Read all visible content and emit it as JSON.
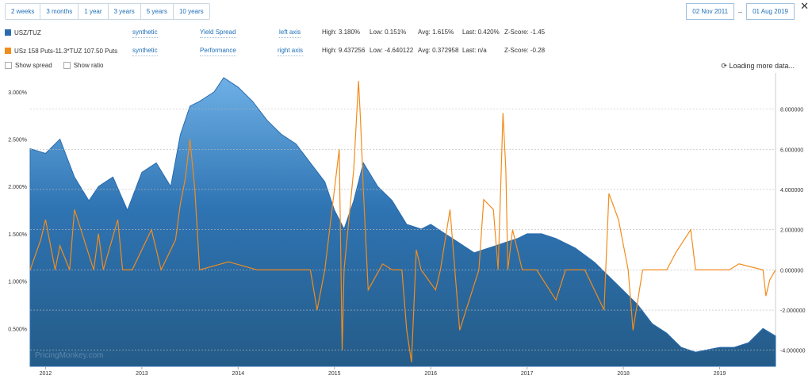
{
  "ranges": [
    "2 weeks",
    "3 months",
    "1 year",
    "3 years",
    "5 years",
    "10 years"
  ],
  "date_from": "02 Nov 2011",
  "date_sep": "–",
  "date_to": "01 Aug 2019",
  "close_label": "✕",
  "series_rows": [
    {
      "color": "#2a6bae",
      "name": "USZ/TUZ",
      "type": "synthetic",
      "mode": "Yield Spread",
      "axis": "left axis",
      "high": "High: 3.180%",
      "low": "Low: 0.151%",
      "avg": "Avg: 1.615%",
      "last": "Last: 0.420%",
      "z": "Z-Score: -1.45"
    },
    {
      "color": "#f28c1c",
      "name": "USz 158 Puts-11.3*TUZ 107.50 Puts",
      "type": "synthetic",
      "mode": "Performance",
      "axis": "right axis",
      "high": "High: 9.437256",
      "low": "Low: -4.640122",
      "avg": "Avg: 0.372958",
      "last": "Last: n/a",
      "z": "Z-Score: -0.28"
    }
  ],
  "show_spread": "Show spread",
  "show_ratio": "Show ratio",
  "loading": "Loading more data...",
  "watermark": "PricingMonkey.com",
  "colors": {
    "spread": "#2a6bae",
    "perf": "#f28c1c",
    "link": "#1e6fb8"
  },
  "chart_data": {
    "type": "area",
    "x_tick_labels": [
      "2012",
      "2013",
      "2014",
      "2015",
      "2016",
      "2017",
      "2018",
      "2019"
    ],
    "left_axis": {
      "ticks": [
        "3.000%",
        "2.500%",
        "2.000%",
        "1.500%",
        "1.000%",
        "0.500%"
      ],
      "range": [
        0.1,
        3.2
      ]
    },
    "right_axis": {
      "ticks": [
        "8.000000",
        "6.000000",
        "4.000000",
        "2.000000",
        "0.000000",
        "-2.000000",
        "-4.000000"
      ],
      "range": [
        -4.8,
        9.8
      ]
    },
    "grid": true,
    "series": [
      {
        "name": "USZ/TUZ",
        "axis": "left",
        "type": "area",
        "x": [
          2011.84,
          2012.0,
          2012.15,
          2012.3,
          2012.45,
          2012.55,
          2012.7,
          2012.85,
          2013.0,
          2013.15,
          2013.3,
          2013.4,
          2013.5,
          2013.6,
          2013.75,
          2013.85,
          2014.0,
          2014.15,
          2014.3,
          2014.45,
          2014.6,
          2014.75,
          2014.9,
          2015.0,
          2015.1,
          2015.2,
          2015.3,
          2015.45,
          2015.6,
          2015.75,
          2015.9,
          2016.0,
          2016.15,
          2016.3,
          2016.45,
          2016.6,
          2016.75,
          2016.9,
          2017.0,
          2017.15,
          2017.3,
          2017.5,
          2017.7,
          2017.85,
          2018.0,
          2018.15,
          2018.3,
          2018.45,
          2018.6,
          2018.75,
          2018.9,
          2019.0,
          2019.15,
          2019.3,
          2019.45,
          2019.58
        ],
        "values": [
          2.4,
          2.35,
          2.5,
          2.1,
          1.85,
          2.0,
          2.1,
          1.75,
          2.15,
          2.25,
          2.0,
          2.55,
          2.85,
          2.9,
          3.0,
          3.15,
          3.05,
          2.9,
          2.7,
          2.55,
          2.45,
          2.25,
          2.05,
          1.75,
          1.55,
          1.85,
          2.25,
          2.0,
          1.85,
          1.6,
          1.55,
          1.6,
          1.5,
          1.4,
          1.3,
          1.35,
          1.4,
          1.45,
          1.5,
          1.5,
          1.45,
          1.35,
          1.2,
          1.05,
          0.9,
          0.75,
          0.55,
          0.45,
          0.3,
          0.25,
          0.28,
          0.3,
          0.3,
          0.35,
          0.5,
          0.42
        ]
      },
      {
        "name": "USz 158 Puts-11.3*TUZ 107.50 Puts",
        "axis": "right",
        "type": "line",
        "x": [
          2011.84,
          2011.95,
          2012.0,
          2012.1,
          2012.15,
          2012.25,
          2012.3,
          2012.5,
          2012.55,
          2012.6,
          2012.75,
          2012.8,
          2012.9,
          2013.1,
          2013.2,
          2013.35,
          2013.4,
          2013.45,
          2013.5,
          2013.55,
          2013.6,
          2013.9,
          2014.2,
          2014.5,
          2014.75,
          2014.82,
          2014.9,
          2015.05,
          2015.08,
          2015.1,
          2015.2,
          2015.25,
          2015.27,
          2015.3,
          2015.35,
          2015.5,
          2015.6,
          2015.7,
          2015.75,
          2015.8,
          2015.85,
          2015.9,
          2016.05,
          2016.1,
          2016.2,
          2016.3,
          2016.5,
          2016.55,
          2016.65,
          2016.7,
          2016.75,
          2016.78,
          2016.8,
          2016.85,
          2016.95,
          2017.1,
          2017.3,
          2017.4,
          2017.6,
          2017.8,
          2017.85,
          2017.95,
          2018.05,
          2018.1,
          2018.2,
          2018.3,
          2018.45,
          2018.55,
          2018.7,
          2018.75,
          2018.85,
          2019.1,
          2019.2,
          2019.45,
          2019.48,
          2019.52,
          2019.58
        ],
        "values": [
          0,
          1.5,
          2.5,
          0,
          1.2,
          0,
          3.0,
          0,
          1.8,
          0,
          2.5,
          0,
          0,
          2.0,
          0,
          1.5,
          3.3,
          4.5,
          6.5,
          4.0,
          0,
          0.4,
          0,
          0,
          0,
          -2.0,
          0,
          6.0,
          -4.0,
          0,
          5.0,
          9.4,
          7.5,
          4.0,
          -1.0,
          0.3,
          0,
          0,
          -3.0,
          -4.6,
          1.0,
          0,
          -1.0,
          0,
          3.0,
          -3.0,
          0,
          3.5,
          3.0,
          0,
          7.8,
          5.0,
          0,
          2.0,
          0,
          0,
          -1.5,
          0,
          0,
          -2.0,
          3.8,
          2.5,
          0,
          -3.0,
          0,
          0,
          0,
          0.9,
          2.0,
          0,
          0,
          0,
          0.3,
          0,
          -1.3,
          -0.5,
          0
        ]
      }
    ]
  }
}
